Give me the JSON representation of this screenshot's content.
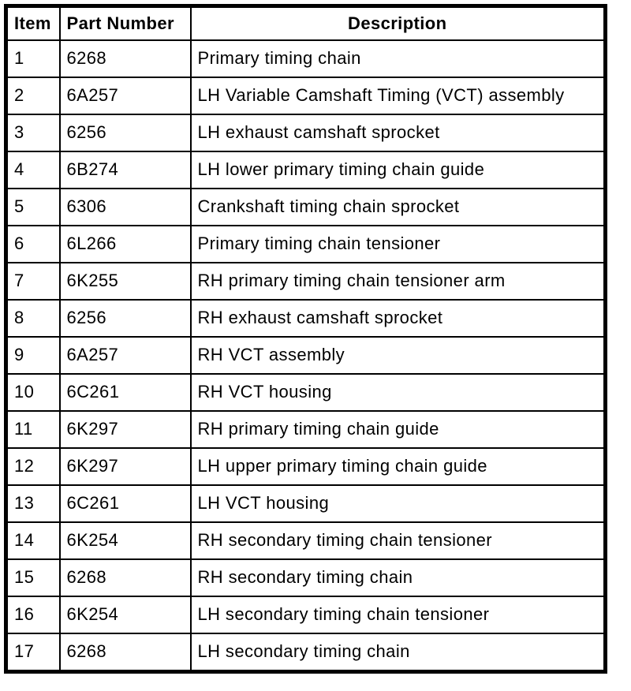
{
  "colors": {
    "background": "#ffffff",
    "border": "#000000",
    "text": "#000000"
  },
  "table": {
    "columns": [
      {
        "key": "item",
        "label": "Item"
      },
      {
        "key": "part_number",
        "label": "Part Number"
      },
      {
        "key": "description",
        "label": "Description"
      }
    ],
    "rows": [
      {
        "item": "1",
        "part_number": "6268",
        "description": "Primary timing chain"
      },
      {
        "item": "2",
        "part_number": "6A257",
        "description": "LH Variable Camshaft Timing (VCT) assembly"
      },
      {
        "item": "3",
        "part_number": "6256",
        "description": "LH exhaust camshaft sprocket"
      },
      {
        "item": "4",
        "part_number": "6B274",
        "description": "LH lower primary timing chain guide"
      },
      {
        "item": "5",
        "part_number": "6306",
        "description": "Crankshaft timing chain sprocket"
      },
      {
        "item": "6",
        "part_number": "6L266",
        "description": "Primary timing chain tensioner"
      },
      {
        "item": "7",
        "part_number": "6K255",
        "description": "RH primary timing chain tensioner arm"
      },
      {
        "item": "8",
        "part_number": "6256",
        "description": "RH exhaust camshaft sprocket"
      },
      {
        "item": "9",
        "part_number": "6A257",
        "description": "RH VCT assembly"
      },
      {
        "item": "10",
        "part_number": "6C261",
        "description": "RH VCT housing"
      },
      {
        "item": "11",
        "part_number": "6K297",
        "description": "RH primary timing chain guide"
      },
      {
        "item": "12",
        "part_number": "6K297",
        "description": "LH upper primary timing chain guide"
      },
      {
        "item": "13",
        "part_number": "6C261",
        "description": "LH VCT housing"
      },
      {
        "item": "14",
        "part_number": "6K254",
        "description": "RH secondary timing chain tensioner"
      },
      {
        "item": "15",
        "part_number": "6268",
        "description": "RH secondary timing chain"
      },
      {
        "item": "16",
        "part_number": "6K254",
        "description": "LH secondary timing chain tensioner"
      },
      {
        "item": "17",
        "part_number": "6268",
        "description": "LH secondary timing chain"
      }
    ]
  }
}
